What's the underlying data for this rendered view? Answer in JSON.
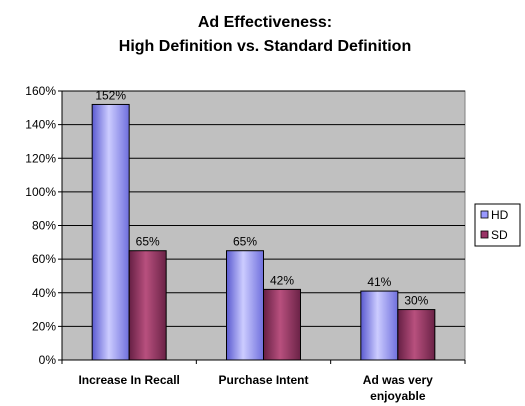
{
  "chart_data": {
    "type": "bar",
    "title": [
      "Ad Effectiveness:",
      "High Definition vs. Standard Definition"
    ],
    "categories": [
      [
        "Increase In Recall"
      ],
      [
        "Purchase Intent"
      ],
      [
        "Ad was very",
        "enjoyable"
      ]
    ],
    "series": [
      {
        "name": "HD",
        "values": [
          152,
          65,
          41
        ],
        "labels": [
          "152%",
          "65%",
          "41%"
        ],
        "color": "#9999ff"
      },
      {
        "name": "SD",
        "values": [
          65,
          42,
          30
        ],
        "labels": [
          "65%",
          "42%",
          "30%"
        ],
        "color": "#993366"
      }
    ],
    "ylim": [
      0,
      160
    ],
    "yticks": [
      0,
      20,
      40,
      60,
      80,
      100,
      120,
      140,
      160
    ],
    "ytick_labels": [
      "0%",
      "20%",
      "40%",
      "60%",
      "80%",
      "100%",
      "120%",
      "140%",
      "160%"
    ],
    "xlabel": "",
    "ylabel": "",
    "grid": true,
    "legend": "right",
    "plot_background": "#c0c0c0"
  }
}
